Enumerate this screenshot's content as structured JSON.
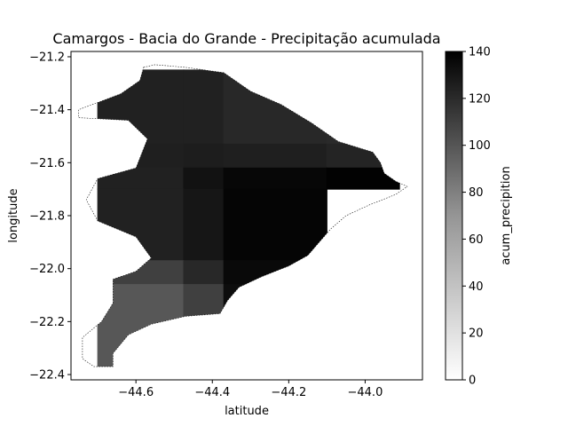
{
  "chart_data": {
    "type": "heatmap",
    "title": "Camargos - Bacia do Grande - Precipitação acumulada",
    "xlabel": "latitude",
    "ylabel": "longitude",
    "xlim": [
      -44.77,
      -43.85
    ],
    "ylim": [
      -22.42,
      -21.18
    ],
    "x_ticks": [
      -44.6,
      -44.4,
      -44.2,
      -44.0
    ],
    "x_tick_labels": [
      "−44.6",
      "−44.4",
      "−44.2",
      "−44.0"
    ],
    "y_ticks": [
      -21.2,
      -21.4,
      -21.6,
      -21.8,
      -22.0,
      -22.2,
      -22.4
    ],
    "y_tick_labels": [
      "−21.2",
      "−21.4",
      "−21.6",
      "−21.8",
      "−22.0",
      "−22.2",
      "−22.4"
    ],
    "colorbar": {
      "label": "acum_precipition",
      "min": 0,
      "max": 140,
      "ticks": [
        0,
        20,
        40,
        60,
        80,
        100,
        120,
        140
      ],
      "colormap": "Greys"
    },
    "grid_x_edges": [
      -44.7,
      -44.475,
      -44.37,
      -44.1,
      -43.91
    ],
    "grid_y_edges": [
      -21.25,
      -21.53,
      -21.62,
      -21.7,
      -21.97,
      -22.06,
      -22.4
    ],
    "cells": [
      [
        122,
        122,
        118,
        117
      ],
      [
        123,
        124,
        123,
        120
      ],
      [
        122,
        130,
        136,
        139
      ],
      [
        122,
        128,
        137,
        null
      ],
      [
        105,
        118,
        135,
        null
      ],
      [
        92,
        105,
        133,
        null
      ]
    ],
    "basin_outline": [
      [
        -44.58,
        -21.24
      ],
      [
        -44.55,
        -21.23
      ],
      [
        -44.47,
        -21.24
      ],
      [
        -44.37,
        -21.26
      ],
      [
        -44.3,
        -21.33
      ],
      [
        -44.22,
        -21.38
      ],
      [
        -44.14,
        -21.45
      ],
      [
        -44.07,
        -21.52
      ],
      [
        -43.98,
        -21.56
      ],
      [
        -43.96,
        -21.6
      ],
      [
        -43.95,
        -21.64
      ],
      [
        -43.92,
        -21.67
      ],
      [
        -43.89,
        -21.69
      ],
      [
        -43.92,
        -21.72
      ],
      [
        -43.99,
        -21.76
      ],
      [
        -44.05,
        -21.8
      ],
      [
        -44.09,
        -21.85
      ],
      [
        -44.12,
        -21.9
      ],
      [
        -44.15,
        -21.95
      ],
      [
        -44.2,
        -21.99
      ],
      [
        -44.27,
        -22.03
      ],
      [
        -44.33,
        -22.07
      ],
      [
        -44.36,
        -22.12
      ],
      [
        -44.38,
        -22.17
      ],
      [
        -44.47,
        -22.18
      ],
      [
        -44.56,
        -22.21
      ],
      [
        -44.62,
        -22.25
      ],
      [
        -44.66,
        -22.32
      ],
      [
        -44.66,
        -22.37
      ],
      [
        -44.71,
        -22.37
      ],
      [
        -44.74,
        -22.34
      ],
      [
        -44.74,
        -22.26
      ],
      [
        -44.69,
        -22.2
      ],
      [
        -44.66,
        -22.13
      ],
      [
        -44.66,
        -22.04
      ],
      [
        -44.6,
        -22.01
      ],
      [
        -44.56,
        -21.96
      ],
      [
        -44.6,
        -21.88
      ],
      [
        -44.7,
        -21.82
      ],
      [
        -44.73,
        -21.74
      ],
      [
        -44.7,
        -21.66
      ],
      [
        -44.6,
        -21.62
      ],
      [
        -44.57,
        -21.51
      ],
      [
        -44.62,
        -21.44
      ],
      [
        -44.75,
        -21.43
      ],
      [
        -44.75,
        -21.4
      ],
      [
        -44.64,
        -21.34
      ],
      [
        -44.59,
        -21.29
      ]
    ]
  }
}
